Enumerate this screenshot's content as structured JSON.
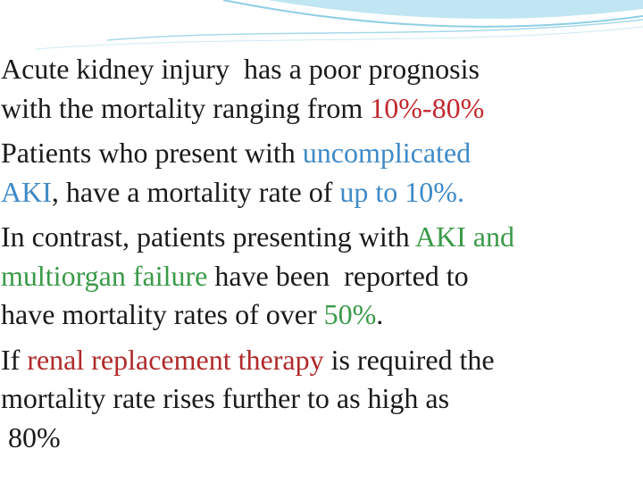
{
  "slide": {
    "paragraphs": [
      {
        "lines": [
          [
            {
              "text": "Acute kidney injury  has a poor prognosis",
              "color": "#1a1a1a"
            }
          ],
          [
            {
              "text": "with the mortality ranging from ",
              "color": "#1a1a1a"
            },
            {
              "text": "10%-80%",
              "color": "#c0282d"
            }
          ]
        ]
      },
      {
        "lines": [
          [
            {
              "text": "Patients who present with ",
              "color": "#1a1a1a"
            },
            {
              "text": "uncomplicated",
              "color": "#3f8ac8"
            }
          ],
          [
            {
              "text": "AKI",
              "color": "#3f8ac8"
            },
            {
              "text": ", have a mortality rate of ",
              "color": "#1a1a1a"
            },
            {
              "text": "up to 10%.",
              "color": "#3f8ac8"
            }
          ]
        ]
      },
      {
        "lines": [
          [
            {
              "text": "In contrast, patients presenting with ",
              "color": "#1a1a1a"
            },
            {
              "text": "AKI and",
              "color": "#3a9a48"
            }
          ],
          [
            {
              "text": "multiorgan failure",
              "color": "#3a9a48"
            },
            {
              "text": " have been  reported to",
              "color": "#1a1a1a"
            }
          ],
          [
            {
              "text": "have mortality rates of over ",
              "color": "#1a1a1a"
            },
            {
              "text": "50%",
              "color": "#3a9a48"
            },
            {
              "text": ".",
              "color": "#1a1a1a"
            }
          ]
        ]
      },
      {
        "lines": [
          [
            {
              "text": "If ",
              "color": "#1a1a1a"
            },
            {
              "text": "renal replacement therapy",
              "color": "#b02a2a"
            },
            {
              "text": " is required the",
              "color": "#1a1a1a"
            }
          ],
          [
            {
              "text": "mortality rate rises further to as high as",
              "color": "#1a1a1a"
            }
          ],
          [
            {
              "text": " 80%",
              "color": "#1a1a1a"
            }
          ]
        ]
      }
    ]
  }
}
